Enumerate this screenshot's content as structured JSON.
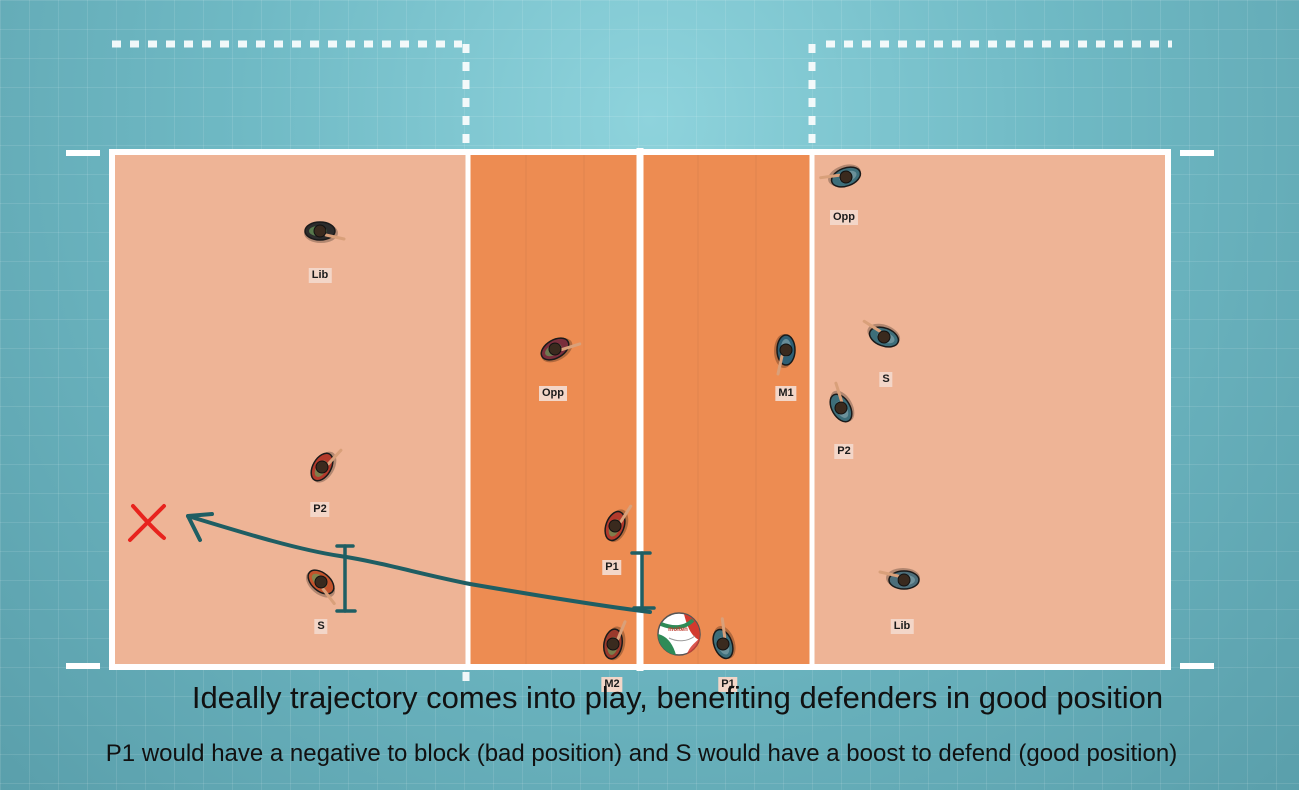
{
  "court": {
    "colors": {
      "background": "#6fb9c4",
      "back_zone": "#eeb496",
      "front_zone": "#ed8c52",
      "lines": "#ffffff"
    }
  },
  "players": [
    {
      "label": "Lib",
      "team": "left",
      "color": "#2c2c2c"
    },
    {
      "label": "Opp",
      "team": "left",
      "color": "#7a2e3c"
    },
    {
      "label": "P2",
      "team": "left",
      "color": "#b33a2c"
    },
    {
      "label": "P1",
      "team": "left",
      "color": "#b33a2c"
    },
    {
      "label": "S",
      "team": "left",
      "color": "#c2532c"
    },
    {
      "label": "M2",
      "team": "left",
      "color": "#9a3a2c"
    },
    {
      "label": "P1",
      "team": "right",
      "color": "#3d6e7a"
    },
    {
      "label": "Opp",
      "team": "right",
      "color": "#3d6e7a"
    },
    {
      "label": "M1",
      "team": "right",
      "color": "#2f5f74"
    },
    {
      "label": "S",
      "team": "right",
      "color": "#3d6e7a"
    },
    {
      "label": "P2",
      "team": "right",
      "color": "#3d6e7a"
    },
    {
      "label": "Lib",
      "team": "right",
      "color": "#4d6e7a"
    }
  ],
  "annotations": {
    "trajectory_color": "#1f5e63",
    "target_mark_color": "#e8231d",
    "icons": [
      "volleyball-icon",
      "target-x-icon",
      "trajectory-arrow"
    ]
  },
  "captions": {
    "main": "Ideally trajectory comes into play, benefiting defenders in good position",
    "detail": "P1 would have a negative to block (bad position) and S would have a boost to defend (good position)"
  }
}
